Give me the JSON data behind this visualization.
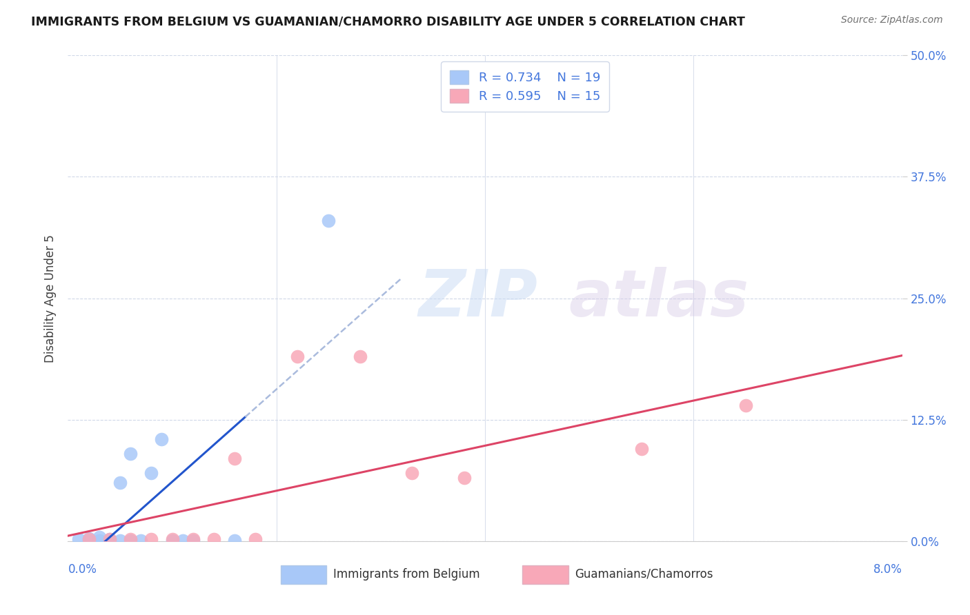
{
  "title": "IMMIGRANTS FROM BELGIUM VS GUAMANIAN/CHAMORRO DISABILITY AGE UNDER 5 CORRELATION CHART",
  "source": "Source: ZipAtlas.com",
  "ylabel_label": "Disability Age Under 5",
  "watermark_zip": "ZIP",
  "watermark_atlas": "atlas",
  "legend_blue_R": "R = 0.734",
  "legend_blue_N": "N = 19",
  "legend_pink_R": "R = 0.595",
  "legend_pink_N": "N = 15",
  "legend_blue_label": "Immigrants from Belgium",
  "legend_pink_label": "Guamanians/Chamorros",
  "blue_color": "#a8c8f8",
  "pink_color": "#f8a8b8",
  "blue_line_color": "#2255cc",
  "pink_line_color": "#dd4466",
  "blue_dashed_color": "#aabbdd",
  "blue_scatter_x": [
    0.001,
    0.002,
    0.002,
    0.003,
    0.003,
    0.004,
    0.004,
    0.005,
    0.005,
    0.006,
    0.006,
    0.007,
    0.008,
    0.009,
    0.01,
    0.011,
    0.012,
    0.016,
    0.025
  ],
  "blue_scatter_y": [
    0.002,
    0.001,
    0.003,
    0.001,
    0.004,
    0.001,
    0.002,
    0.001,
    0.06,
    0.001,
    0.09,
    0.001,
    0.07,
    0.105,
    0.001,
    0.001,
    0.001,
    0.001,
    0.33
  ],
  "pink_scatter_x": [
    0.002,
    0.004,
    0.006,
    0.008,
    0.01,
    0.012,
    0.014,
    0.016,
    0.018,
    0.022,
    0.028,
    0.033,
    0.038,
    0.055,
    0.065
  ],
  "pink_scatter_y": [
    0.002,
    0.002,
    0.002,
    0.002,
    0.002,
    0.002,
    0.002,
    0.085,
    0.002,
    0.19,
    0.19,
    0.07,
    0.065,
    0.095,
    0.14
  ],
  "xlim": [
    0.0,
    0.08
  ],
  "ylim": [
    0.0,
    0.5
  ],
  "xticks": [
    0.0,
    0.02,
    0.04,
    0.06,
    0.08
  ],
  "yticks": [
    0.0,
    0.125,
    0.25,
    0.375,
    0.5
  ],
  "right_ytick_labels": [
    "0.0%",
    "12.5%",
    "25.0%",
    "37.5%",
    "50.0%"
  ]
}
